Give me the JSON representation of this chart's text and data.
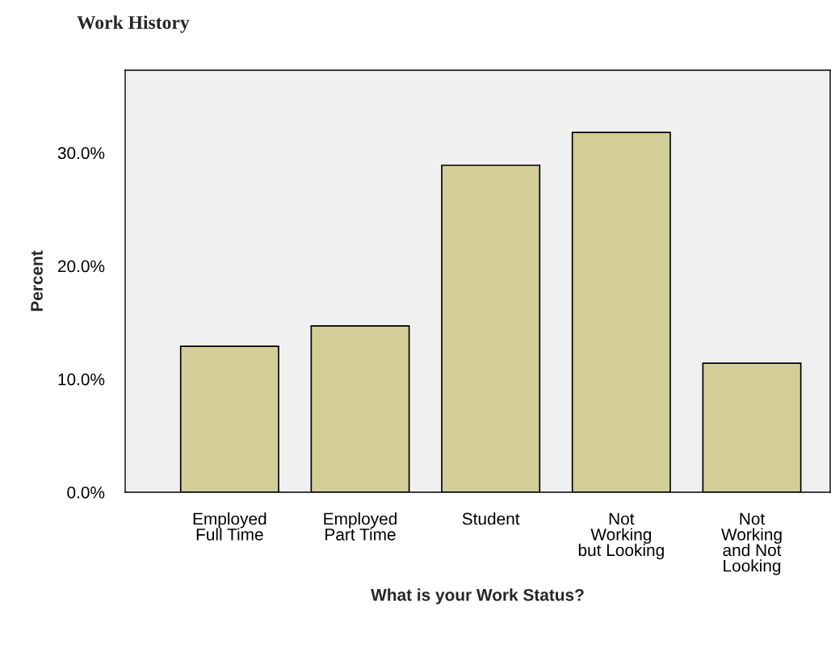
{
  "chart_data": {
    "type": "bar",
    "title": "Work History",
    "xlabel": "What is your Work Status?",
    "ylabel": "Percent",
    "categories": [
      "Employed\nFull Time",
      "Employed\nPart Time",
      "Student",
      "Not\nWorking\nbut Looking",
      "Not\nWorking\nand Not\nLooking"
    ],
    "values": [
      12.9,
      14.7,
      28.9,
      31.8,
      11.4
    ],
    "color": "#d3ce97",
    "ylim": [
      0,
      37.3
    ],
    "yticks": [
      {
        "value": 0,
        "label": "0.0%"
      },
      {
        "value": 10,
        "label": "10.0%"
      },
      {
        "value": 20,
        "label": "20.0%"
      },
      {
        "value": 30,
        "label": "30.0%"
      }
    ],
    "grid": false
  }
}
